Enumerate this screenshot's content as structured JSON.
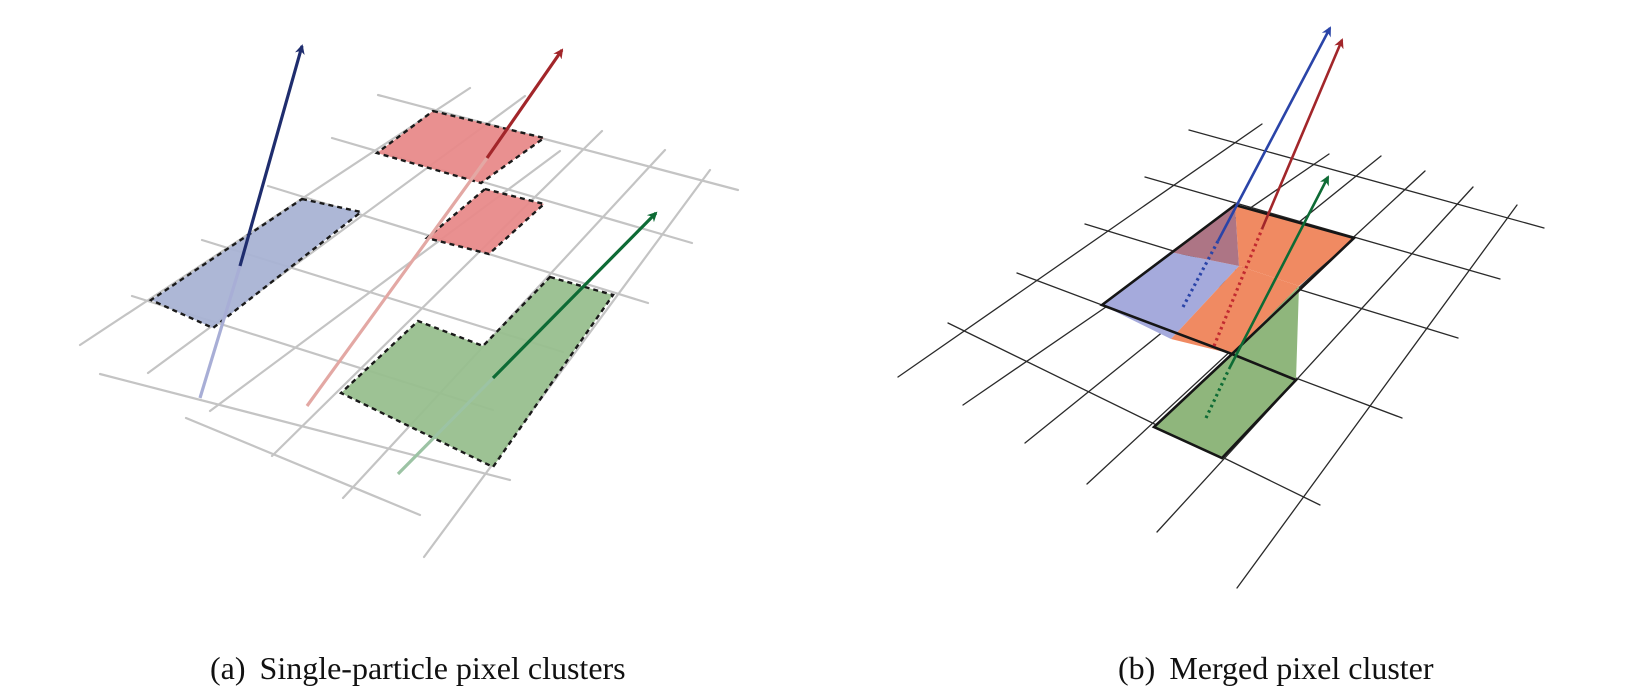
{
  "panels": {
    "a": {
      "label": "(a)",
      "caption": "Single-particle pixel clusters"
    },
    "b": {
      "label": "(b)",
      "caption": "Merged pixel cluster"
    }
  },
  "colors": {
    "grid_a": "#c2c2c2",
    "grid_b": "#2a2a2a",
    "blue_track": "#1f2d6e",
    "blue_fill": "#a9b3d4",
    "red_track": "#a2262a",
    "red_fill": "#e88a8a",
    "green_track": "#0e6b35",
    "green_fill": "#98bf8e",
    "merged_blue_fill": "#a5aadc",
    "merged_orange_fill": "#f08a62",
    "merged_overlap_fill": "#ad7585",
    "merged_green_fill": "#8fb67c"
  }
}
